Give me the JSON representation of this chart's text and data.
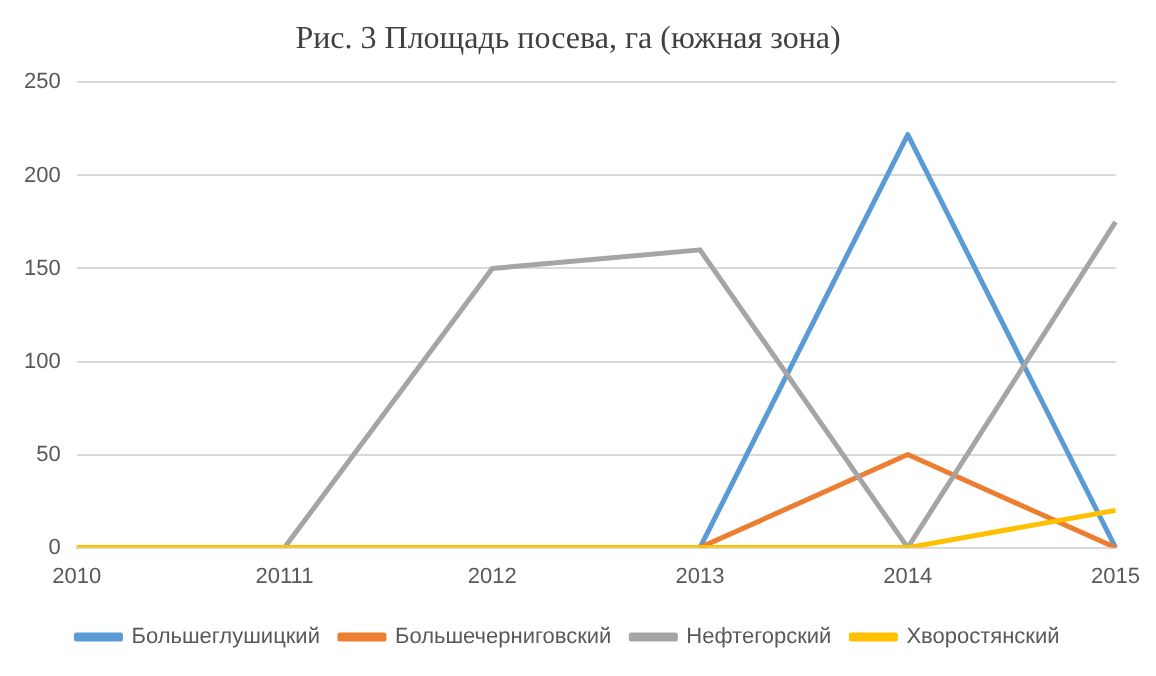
{
  "chart_data": {
    "type": "line",
    "title": "Рис. 3 Площадь посева, га (южная зона)",
    "categories": [
      "2010",
      "20111",
      "2012",
      "2013",
      "2014",
      "2015"
    ],
    "series": [
      {
        "name": "Большеглушицкий",
        "color": "#5b9bd5",
        "values": [
          null,
          null,
          null,
          0,
          222,
          0
        ]
      },
      {
        "name": "Большечерниговский",
        "color": "#ed7d31",
        "values": [
          null,
          null,
          null,
          0,
          50,
          0
        ]
      },
      {
        "name": "Нефтегорский",
        "color": "#a5a5a5",
        "values": [
          null,
          0,
          150,
          160,
          0,
          175
        ]
      },
      {
        "name": "Хворостянский",
        "color": "#ffc000",
        "values": [
          0,
          0,
          0,
          0,
          0,
          20
        ]
      }
    ],
    "ylim": [
      0,
      250
    ],
    "yticks": [
      0,
      50,
      100,
      150,
      200,
      250
    ],
    "grid": "y",
    "legend": "bottom",
    "marker": "none",
    "line_style": "solid"
  }
}
